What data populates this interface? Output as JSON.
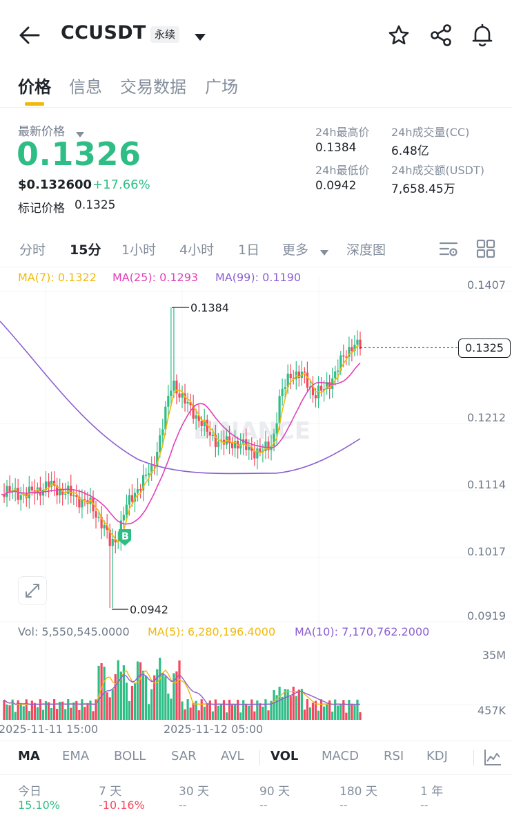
{
  "header": {
    "symbol": "CCUSDT",
    "contract_type": "永续",
    "icons": [
      "back-arrow-icon",
      "chevron-down-icon",
      "star-icon",
      "share-icon",
      "bell-icon"
    ]
  },
  "tabs": [
    {
      "label": "价格",
      "active": true
    },
    {
      "label": "信息",
      "active": false
    },
    {
      "label": "交易数据",
      "active": false
    },
    {
      "label": "广场",
      "active": false
    }
  ],
  "price": {
    "latest_label": "最新价格",
    "last_price": "0.1326",
    "usd_price": "$0.132600",
    "change_pct": "+17.66%",
    "mark_label": "标记价格",
    "mark_value": "0.1325"
  },
  "stats": {
    "high_label": "24h最高价",
    "high_value": "0.1384",
    "low_label": "24h最低价",
    "low_value": "0.0942",
    "vol_cc_label": "24h成交量(CC)",
    "vol_cc_value": "6.48亿",
    "vol_usdt_label": "24h成交额(USDT)",
    "vol_usdt_value": "7,658.45万"
  },
  "timeframes": {
    "items": [
      "分时",
      "15分",
      "1小时",
      "4小时",
      "1日",
      "更多",
      "深度图"
    ],
    "active": "15分"
  },
  "colors": {
    "up": "#2ebd85",
    "down": "#f6465d",
    "ma7": "#f0b90b",
    "ma25": "#e040b8",
    "ma99": "#8c5fd0",
    "accent": "#f0b90b"
  },
  "chart": {
    "ma_legend": {
      "ma7": "MA(7): 0.1322",
      "ma25": "MA(25): 0.1293",
      "ma99": "MA(99): 0.1190"
    },
    "price_axis": [
      "0.1407",
      "0.1212",
      "0.1114",
      "0.1017",
      "0.0919"
    ],
    "current_price_tag": "0.1325",
    "high_marker": "0.1384",
    "low_marker": "0.0942",
    "buy_marker": "B",
    "watermark": "BINANCE",
    "vol_legend": {
      "vol": "Vol: 5,550,545.0000",
      "ma5": "MA(5): 6,280,196.4000",
      "ma10": "MA(10): 7,170,762.2000"
    },
    "vol_axis": [
      "35M",
      "457K"
    ],
    "dates": [
      "2025-11-11 15:00",
      "2025-11-12 05:00"
    ]
  },
  "indicators": {
    "items": [
      "MA",
      "EMA",
      "BOLL",
      "SAR",
      "AVL",
      "VOL",
      "MACD",
      "RSI",
      "KDJ"
    ],
    "active": [
      "MA",
      "VOL"
    ]
  },
  "performance": [
    {
      "label": "今日",
      "value": "15.10%",
      "dir": "up"
    },
    {
      "label": "7 天",
      "value": "-10.16%",
      "dir": "down"
    },
    {
      "label": "30 天",
      "value": "--",
      "dir": "none"
    },
    {
      "label": "90 天",
      "value": "--",
      "dir": "none"
    },
    {
      "label": "180 天",
      "value": "--",
      "dir": "none"
    },
    {
      "label": "1 年",
      "value": "--",
      "dir": "none"
    }
  ]
}
